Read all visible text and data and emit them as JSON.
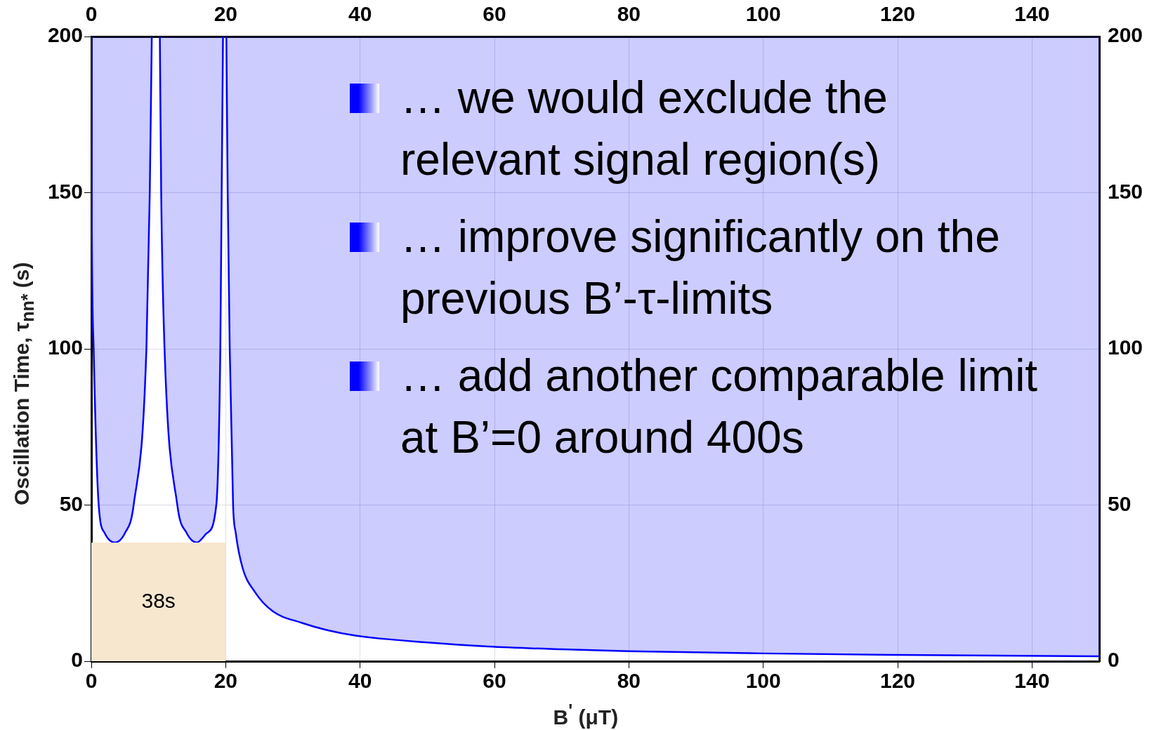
{
  "chart_data": {
    "type": "line",
    "xlabel": "B$^{'}$ (μT)",
    "ylabel": "Oscillation Time, τ$_{nn*}$ (s)",
    "xlim": [
      0,
      150
    ],
    "xticks": [
      0,
      20,
      40,
      60,
      80,
      100,
      120,
      140
    ],
    "x2lim": [
      0,
      150
    ],
    "x2ticks": [
      0,
      20,
      40,
      60,
      80,
      100,
      120,
      140
    ],
    "ylim": [
      0,
      200
    ],
    "yticks": [
      0,
      50,
      100,
      150,
      200
    ],
    "y2lim": [
      0,
      200
    ],
    "y2ticks": [
      0,
      50,
      100,
      150,
      200
    ],
    "grid": true,
    "legend": false,
    "series": [
      {
        "type": "area",
        "color": "#f7e7cf",
        "x": [
          0,
          20
        ],
        "values": [
          38,
          38
        ]
      },
      {
        "type": "line",
        "color": "#0000ff",
        "x": [
          0,
          0.05,
          0.35,
          1.1,
          2,
          3.5,
          5,
          6.3,
          8.2,
          8.7,
          9.0,
          9.6,
          10.2,
          10.4,
          10.9,
          12.8,
          14.2,
          15.7,
          17.2,
          18.6,
          19.2,
          19.4,
          19.6,
          19.85,
          20.1,
          20.3,
          20.6,
          21.1,
          21.5,
          22.5,
          24.4,
          27,
          31.3,
          35,
          39.3,
          50,
          59,
          70,
          80,
          100,
          120,
          150
        ],
        "values": [
          200,
          150,
          100,
          50,
          41,
          38,
          41,
          50,
          100,
          150,
          200,
          null,
          200,
          150,
          100,
          50,
          41,
          38,
          41,
          50,
          100,
          150,
          200,
          null,
          200,
          150,
          100,
          50,
          41,
          30,
          22,
          16,
          12.3,
          10,
          8.2,
          6,
          4.7,
          3.8,
          3.2,
          2.5,
          2,
          1.6
        ]
      }
    ],
    "annotations": [
      "38s",
      "… we would exclude the relevant signal region(s)",
      "… improve significantly on the previous B’-τ-limits",
      "… add another comparable limit at B’=0 around 400s"
    ]
  }
}
